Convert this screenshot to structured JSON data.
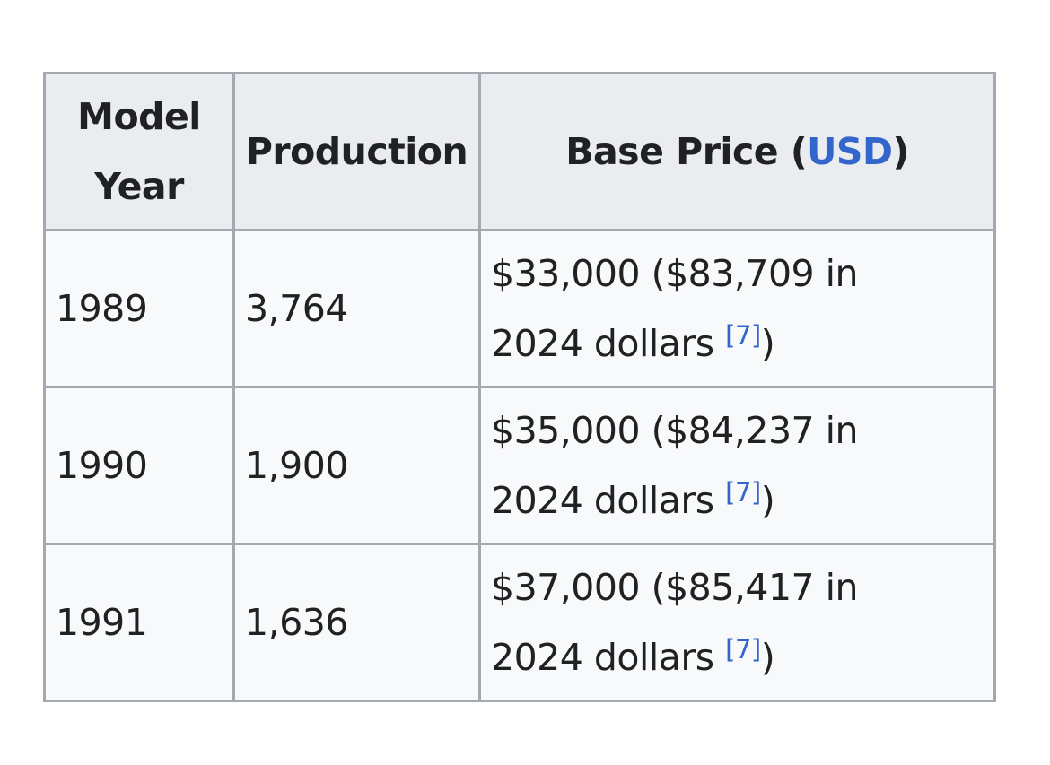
{
  "table": {
    "headers": {
      "model_year_line1": "Model",
      "model_year_line2": "Year",
      "production": "Production",
      "base_price_prefix": "Base Price (",
      "base_price_link": "USD",
      "base_price_suffix": ")"
    },
    "rows": [
      {
        "year": "1989",
        "production": "3,764",
        "price_line1": "$33,000 ($83,709 in",
        "price_line2": "2024 dollars ",
        "ref": "[7]",
        "price_close": ")"
      },
      {
        "year": "1990",
        "production": "1,900",
        "price_line1": "$35,000 ($84,237 in",
        "price_line2": "2024 dollars ",
        "ref": "[7]",
        "price_close": ")"
      },
      {
        "year": "1991",
        "production": "1,636",
        "price_line1": "$37,000 ($85,417 in",
        "price_line2": "2024 dollars ",
        "ref": "[7]",
        "price_close": ")"
      }
    ]
  },
  "colors": {
    "link": "#3366cc",
    "header_bg": "#eaecf0",
    "cell_bg": "#f8f9fa",
    "border": "#a2a9b1"
  }
}
